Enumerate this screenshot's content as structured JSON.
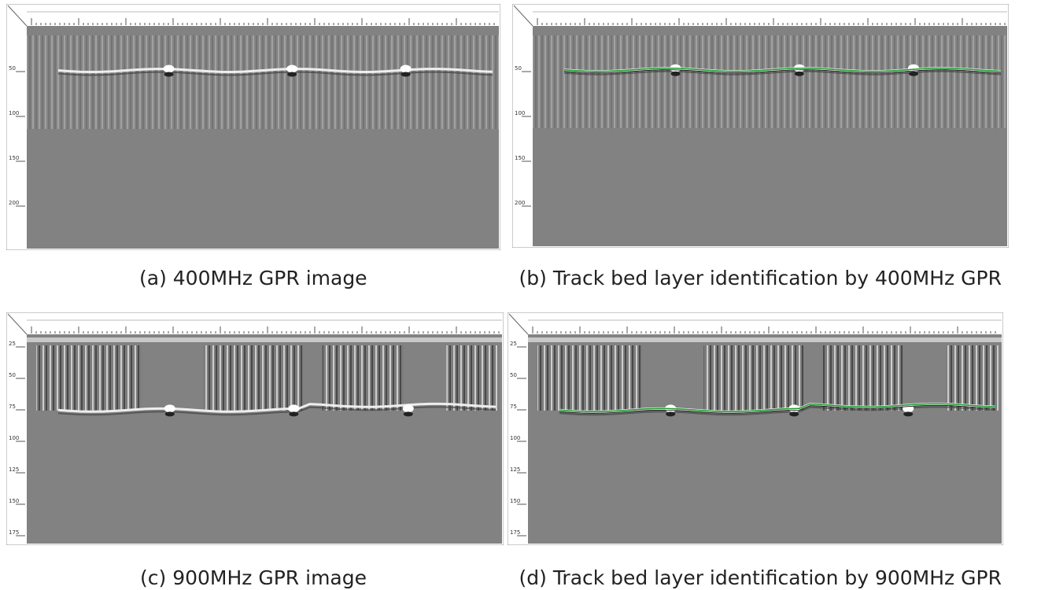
{
  "panels": [
    {
      "caption": "(a) 400MHz GPR image",
      "depth_labels": [
        "50",
        "100",
        "150",
        "200"
      ]
    },
    {
      "caption": "(b) Track bed layer identification by 400MHz GPR",
      "depth_labels": [
        "50",
        "100",
        "150",
        "200"
      ]
    },
    {
      "caption": "(c) 900MHz GPR image",
      "depth_labels": [
        "25",
        "50",
        "75",
        "100",
        "125",
        "150",
        "175"
      ]
    },
    {
      "caption": "(d) Track bed layer identification by 900MHz GPR",
      "depth_labels": [
        "25",
        "50",
        "75",
        "100",
        "125",
        "150",
        "175"
      ]
    }
  ]
}
